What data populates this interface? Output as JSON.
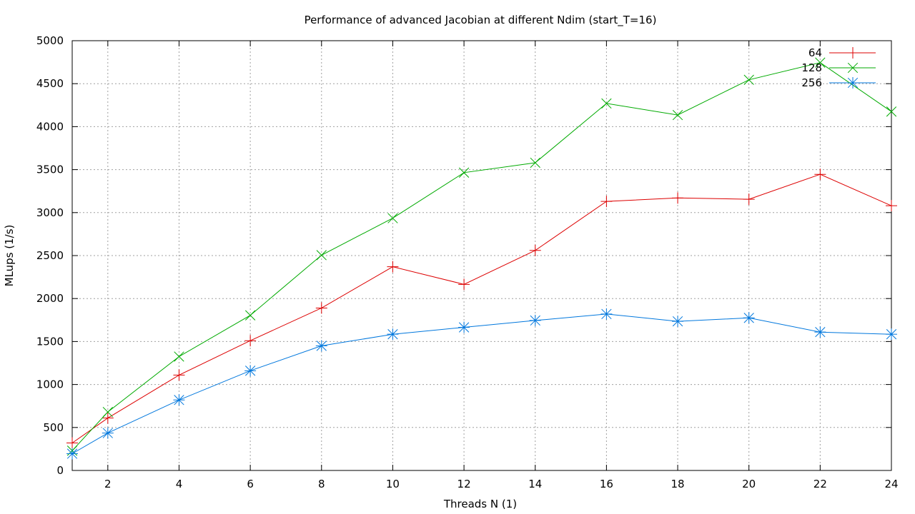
{
  "chart_data": {
    "type": "line",
    "title": "Performance of advanced Jacobian at different Ndim (start_T=16)",
    "xlabel": "Threads N (1)",
    "ylabel": "MLups (1/s)",
    "xlim": [
      1,
      24
    ],
    "ylim": [
      0,
      5000
    ],
    "xticks": [
      2,
      4,
      6,
      8,
      10,
      12,
      14,
      16,
      18,
      20,
      22,
      24
    ],
    "yticks": [
      0,
      500,
      1000,
      1500,
      2000,
      2500,
      3000,
      3500,
      4000,
      4500,
      5000
    ],
    "grid": true,
    "legend_position": "top-right",
    "x": [
      1,
      2,
      4,
      6,
      8,
      10,
      12,
      14,
      16,
      18,
      20,
      22,
      24
    ],
    "series": [
      {
        "name": "64",
        "color": "#dd0000",
        "marker": "plus",
        "values": [
          320,
          610,
          1110,
          1510,
          1890,
          2370,
          2165,
          2560,
          3130,
          3170,
          3155,
          3445,
          3080
        ]
      },
      {
        "name": "128",
        "color": "#00aa00",
        "marker": "cross",
        "values": [
          230,
          680,
          1325,
          1805,
          2505,
          2935,
          3465,
          3580,
          4270,
          4135,
          4545,
          4745,
          4175
        ]
      },
      {
        "name": "256",
        "color": "#0077dd",
        "marker": "star",
        "values": [
          195,
          435,
          820,
          1160,
          1450,
          1585,
          1665,
          1745,
          1820,
          1735,
          1775,
          1610,
          1585
        ]
      }
    ]
  }
}
